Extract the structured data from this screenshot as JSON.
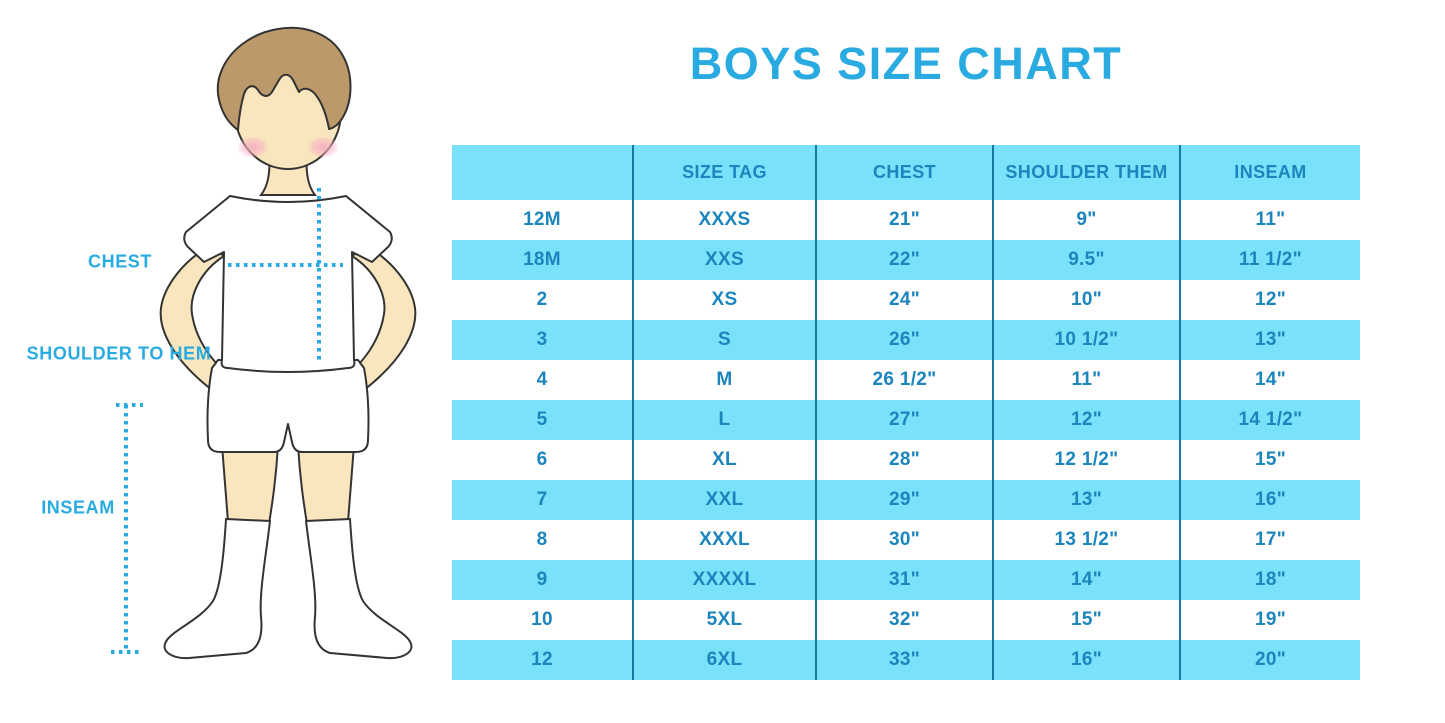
{
  "title": "BOYS SIZE CHART",
  "colors": {
    "title_blue": "#29ABE2",
    "row_cyan": "#79E1F9",
    "table_text_blue": "#1B85BD",
    "column_separator_blue": "#1778A0",
    "measure_line_blue": "#29ABE2",
    "skin": "#FAE6BE",
    "hair_brown": "#BC996B",
    "blush_pink": "#F5AFC0"
  },
  "figure": {
    "labels": {
      "chest": "CHEST",
      "shoulder_to_hem": "SHOULDER TO HEM",
      "inseam": "INSEAM"
    }
  },
  "table": {
    "headers": [
      "",
      "SIZE TAG",
      "CHEST",
      "SHOULDER THEM",
      "INSEAM"
    ],
    "rows": [
      [
        "12M",
        "XXXS",
        "21\"",
        "9\"",
        "11\""
      ],
      [
        "18M",
        "XXS",
        "22\"",
        "9.5\"",
        "11 1/2\""
      ],
      [
        "2",
        "XS",
        "24\"",
        "10\"",
        "12\""
      ],
      [
        "3",
        "S",
        "26\"",
        "10 1/2\"",
        "13\""
      ],
      [
        "4",
        "M",
        "26 1/2\"",
        "11\"",
        "14\""
      ],
      [
        "5",
        "L",
        "27\"",
        "12\"",
        "14 1/2\""
      ],
      [
        "6",
        "XL",
        "28\"",
        "12 1/2\"",
        "15\""
      ],
      [
        "7",
        "XXL",
        "29\"",
        "13\"",
        "16\""
      ],
      [
        "8",
        "XXXL",
        "30\"",
        "13 1/2\"",
        "17\""
      ],
      [
        "9",
        "XXXXL",
        "31\"",
        "14\"",
        "18\""
      ],
      [
        "10",
        "5XL",
        "32\"",
        "15\"",
        "19\""
      ],
      [
        "12",
        "6XL",
        "33\"",
        "16\"",
        "20\""
      ]
    ]
  },
  "chart_data": {
    "type": "table",
    "title": "BOYS SIZE CHART",
    "columns": [
      "",
      "SIZE TAG",
      "CHEST",
      "SHOULDER THEM",
      "INSEAM"
    ],
    "rows": [
      [
        "12M",
        "XXXS",
        "21\"",
        "9\"",
        "11\""
      ],
      [
        "18M",
        "XXS",
        "22\"",
        "9.5\"",
        "11 1/2\""
      ],
      [
        "2",
        "XS",
        "24\"",
        "10\"",
        "12\""
      ],
      [
        "3",
        "S",
        "26\"",
        "10 1/2\"",
        "13\""
      ],
      [
        "4",
        "M",
        "26 1/2\"",
        "11\"",
        "14\""
      ],
      [
        "5",
        "L",
        "27\"",
        "12\"",
        "14 1/2\""
      ],
      [
        "6",
        "XL",
        "28\"",
        "12 1/2\"",
        "15\""
      ],
      [
        "7",
        "XXL",
        "29\"",
        "13\"",
        "16\""
      ],
      [
        "8",
        "XXXL",
        "30\"",
        "13 1/2\"",
        "17\""
      ],
      [
        "9",
        "XXXXL",
        "31\"",
        "14\"",
        "18\""
      ],
      [
        "10",
        "5XL",
        "32\"",
        "15\"",
        "19\""
      ],
      [
        "12",
        "6XL",
        "33\"",
        "16\"",
        "20\""
      ]
    ],
    "figure_measurement_labels": [
      "CHEST",
      "SHOULDER TO HEM",
      "INSEAM"
    ],
    "layout_hints": {
      "alternating_row_fill": [
        "white",
        "cyan"
      ],
      "header_fill": "cyan",
      "gridlines": "vertical-only"
    }
  }
}
